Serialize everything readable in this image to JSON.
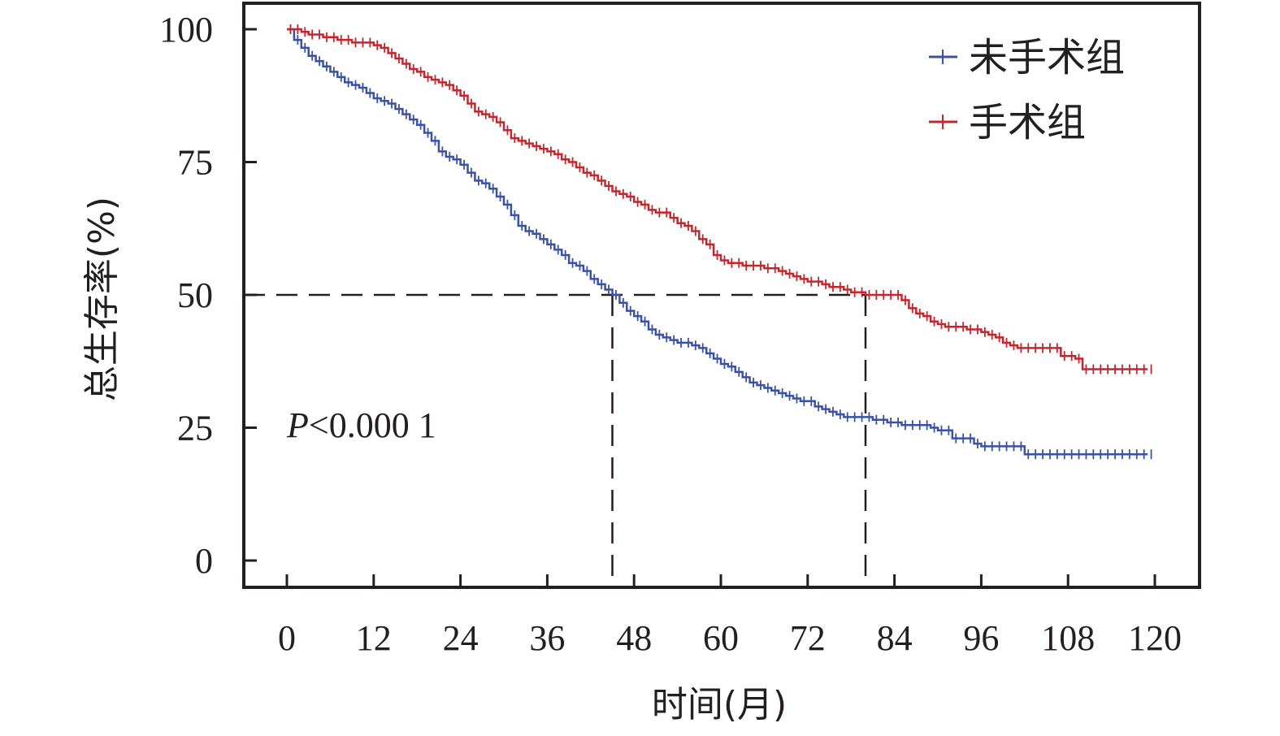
{
  "chart_data": {
    "type": "line",
    "subtype": "kaplan-meier",
    "title": "",
    "xlabel": "时间(月)",
    "ylabel": "总生存率(%)",
    "xlim": [
      0,
      120
    ],
    "ylim": [
      0,
      100
    ],
    "xticks": [
      "0",
      "12",
      "24",
      "36",
      "48",
      "60",
      "72",
      "84",
      "96",
      "108",
      "120"
    ],
    "yticks": [
      "0",
      "25",
      "50",
      "75",
      "100"
    ],
    "legend_position": "top-right",
    "grid": false,
    "annotation": {
      "p_symbol": "P",
      "p_rest": "<0.000 1"
    },
    "reference_lines": {
      "y": 50,
      "x": [
        45,
        80
      ],
      "style": "dashed"
    },
    "series": [
      {
        "name": "未手术组",
        "color": "#3a52a3",
        "x": [
          0,
          1,
          2,
          3,
          4,
          5,
          6,
          7,
          8,
          9,
          10,
          11,
          12,
          13,
          14,
          15,
          16,
          17,
          18,
          19,
          20,
          21,
          22,
          23,
          24,
          25,
          26,
          27,
          28,
          29,
          30,
          31,
          32,
          33,
          34,
          35,
          36,
          37,
          38,
          39,
          40,
          41,
          42,
          43,
          44,
          45,
          46,
          47,
          48,
          49,
          50,
          51,
          52,
          53,
          54,
          55,
          56,
          57,
          58,
          59,
          60,
          61,
          62,
          63,
          64,
          65,
          66,
          67,
          68,
          69,
          70,
          71,
          72,
          73,
          74,
          75,
          76,
          77,
          78,
          79,
          80,
          81,
          82,
          83,
          84,
          85,
          86,
          87,
          88,
          89,
          90,
          91,
          92,
          93,
          94,
          95,
          96,
          97,
          98,
          99,
          100,
          101,
          102,
          103,
          104,
          105,
          106,
          107,
          108,
          109,
          110,
          111,
          112,
          113,
          114,
          115,
          116,
          117,
          118,
          119
        ],
        "y": [
          100,
          98,
          96.5,
          95,
          94,
          93,
          92,
          91,
          90,
          89.5,
          89,
          88,
          87,
          86.5,
          86,
          85,
          84,
          83,
          82,
          80.5,
          79,
          77,
          76,
          75.5,
          74.5,
          73,
          71.5,
          71,
          70,
          68.5,
          67,
          65,
          63,
          62,
          61.5,
          60.5,
          59.5,
          58.5,
          57.5,
          56,
          55.5,
          54.5,
          53,
          52,
          51,
          50,
          48.5,
          47,
          46,
          45,
          43.5,
          42.5,
          42,
          41.5,
          41,
          41,
          40.5,
          40,
          39,
          38,
          37,
          36.5,
          35.5,
          34.5,
          33.5,
          33,
          32.5,
          32,
          31.5,
          31,
          30.5,
          30,
          30,
          29,
          28.5,
          28,
          27.5,
          27,
          27,
          27,
          27,
          26.5,
          26.5,
          26,
          26,
          25.5,
          25.5,
          25.5,
          25.5,
          25,
          24.5,
          24.5,
          23,
          23,
          23,
          22,
          21.5,
          21.5,
          21.5,
          21.5,
          21.5,
          21.5,
          20,
          20,
          20,
          20,
          20,
          20,
          20,
          20,
          20,
          20,
          20,
          20,
          20,
          20,
          20,
          20,
          20,
          20
        ]
      },
      {
        "name": "手术组",
        "color": "#c4262d",
        "x": [
          0,
          1,
          2,
          3,
          4,
          5,
          6,
          7,
          8,
          9,
          10,
          11,
          12,
          13,
          14,
          15,
          16,
          17,
          18,
          19,
          20,
          21,
          22,
          23,
          24,
          25,
          26,
          27,
          28,
          29,
          30,
          31,
          32,
          33,
          34,
          35,
          36,
          37,
          38,
          39,
          40,
          41,
          42,
          43,
          44,
          45,
          46,
          47,
          48,
          49,
          50,
          51,
          52,
          53,
          54,
          55,
          56,
          57,
          58,
          59,
          60,
          61,
          62,
          63,
          64,
          65,
          66,
          67,
          68,
          69,
          70,
          71,
          72,
          73,
          74,
          75,
          76,
          77,
          78,
          79,
          80,
          81,
          82,
          83,
          84,
          85,
          86,
          87,
          88,
          89,
          90,
          91,
          92,
          93,
          94,
          95,
          96,
          97,
          98,
          99,
          100,
          101,
          102,
          103,
          104,
          105,
          106,
          107,
          108,
          109,
          110,
          111,
          112,
          113,
          114,
          115,
          116,
          117,
          118,
          119
        ],
        "y": [
          100,
          100,
          99.5,
          99,
          99,
          98.5,
          98.5,
          98,
          98,
          97.5,
          97.5,
          97.5,
          97,
          96.5,
          95.5,
          94.5,
          93.5,
          92.5,
          92,
          91,
          90.5,
          90,
          89.5,
          88.5,
          87.5,
          86,
          84.5,
          84,
          83.5,
          82.5,
          81,
          79.5,
          79,
          78.5,
          78,
          77.5,
          77,
          76.5,
          75.5,
          75,
          74,
          73,
          72.5,
          71.5,
          70.5,
          69.5,
          69,
          68.5,
          67.5,
          67,
          66,
          65.5,
          65.5,
          64.5,
          63.5,
          63,
          62,
          60.5,
          59.5,
          57.5,
          56.5,
          56,
          56,
          55.5,
          55.5,
          55.5,
          55,
          55,
          54.5,
          54,
          53.5,
          53,
          52.5,
          52.5,
          52,
          51.5,
          51.5,
          51,
          50.5,
          50.5,
          50,
          50,
          50,
          50,
          50,
          49,
          47.5,
          46.5,
          46,
          45,
          44.5,
          44,
          44,
          44,
          43.5,
          43.5,
          43,
          42.5,
          42,
          41,
          40.5,
          40,
          40,
          40,
          40,
          40,
          40,
          38.5,
          38.5,
          38,
          36,
          36,
          36,
          36,
          36,
          36,
          36,
          36,
          36,
          36
        ]
      }
    ]
  }
}
